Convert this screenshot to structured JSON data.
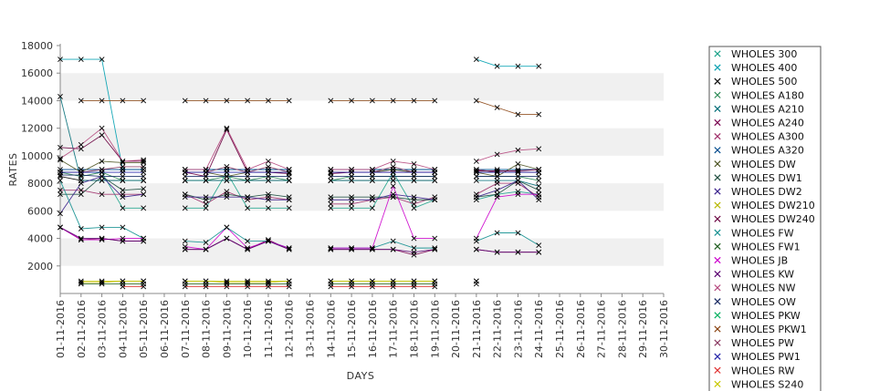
{
  "chart_data": {
    "type": "line",
    "title": "",
    "xlabel": "DAYS",
    "ylabel": "RATES",
    "ylim": [
      0,
      18000
    ],
    "yticks": [
      2000,
      4000,
      6000,
      8000,
      10000,
      12000,
      14000,
      16000,
      18000
    ],
    "x": [
      "01-11-2016",
      "02-11-2016",
      "03-11-2016",
      "04-11-2016",
      "05-11-2016",
      "06-11-2016",
      "07-11-2016",
      "08-11-2016",
      "09-11-2016",
      "10-11-2016",
      "11-11-2016",
      "12-11-2016",
      "13-11-2016",
      "14-11-2016",
      "15-11-2016",
      "16-11-2016",
      "17-11-2016",
      "18-11-2016",
      "19-11-2016",
      "20-11-2016",
      "21-11-2016",
      "22-11-2016",
      "23-11-2016",
      "24-11-2016",
      "25-11-2016",
      "26-11-2016",
      "27-11-2016",
      "28-11-2016",
      "29-11-2016",
      "30-11-2016"
    ],
    "grid": "alternating horizontal bands",
    "legend_position": "right",
    "series": [
      {
        "name": "WHOLES 300",
        "color": "#1aa38a",
        "values": [
          8800,
          8800,
          8800,
          6200,
          6200,
          null,
          6200,
          6200,
          8800,
          6200,
          6200,
          6200,
          null,
          6200,
          6200,
          6200,
          8800,
          6200,
          6800,
          null,
          6800,
          7200,
          7400,
          7200,
          null,
          null,
          null,
          null,
          null,
          null
        ]
      },
      {
        "name": "WHOLES 400",
        "color": "#00a0b0",
        "values": [
          17000,
          17000,
          17000,
          9000,
          9000,
          null,
          9000,
          9000,
          9000,
          9000,
          9000,
          9000,
          null,
          9000,
          9000,
          9000,
          9000,
          9000,
          9000,
          null,
          17000,
          16500,
          16500,
          16500,
          null,
          null,
          null,
          null,
          null,
          null
        ]
      },
      {
        "name": "WHOLES 500",
        "color": "#000000",
        "values": [
          8500,
          8200,
          8200,
          8200,
          8200,
          null,
          8200,
          8200,
          8200,
          8200,
          8200,
          8200,
          null,
          8200,
          8200,
          8200,
          8200,
          8200,
          8200,
          null,
          8800,
          8800,
          8800,
          8800,
          null,
          null,
          null,
          null,
          null,
          null
        ]
      },
      {
        "name": "WHOLES A180",
        "color": "#2e8b57",
        "values": [
          8800,
          8500,
          8800,
          8200,
          8200,
          null,
          8200,
          8200,
          8500,
          8200,
          8500,
          8200,
          null,
          8200,
          8500,
          8500,
          8500,
          8500,
          8500,
          null,
          8500,
          8500,
          8500,
          8200,
          null,
          null,
          null,
          null,
          null,
          null
        ]
      },
      {
        "name": "WHOLES A210",
        "color": "#006d77",
        "values": [
          14300,
          8200,
          8200,
          8200,
          8200,
          null,
          8200,
          8200,
          8200,
          8200,
          8200,
          8200,
          null,
          8200,
          8200,
          8200,
          8200,
          8200,
          8200,
          null,
          8200,
          8200,
          8200,
          7800,
          null,
          null,
          null,
          null,
          null,
          null
        ]
      },
      {
        "name": "WHOLES A240",
        "color": "#7a0050",
        "values": [
          4800,
          3900,
          4000,
          3800,
          3800,
          null,
          3200,
          3200,
          4000,
          3200,
          3900,
          3200,
          null,
          3200,
          3200,
          3200,
          3200,
          2800,
          3200,
          null,
          3200,
          3000,
          3000,
          3000,
          null,
          null,
          null,
          null,
          null,
          null
        ]
      },
      {
        "name": "WHOLES A300",
        "color": "#a0306a",
        "values": [
          7500,
          7500,
          7200,
          7200,
          7200,
          null,
          7200,
          6500,
          7400,
          6800,
          7000,
          6800,
          null,
          6500,
          6500,
          6800,
          7000,
          6500,
          7000,
          null,
          7200,
          8000,
          8000,
          7000,
          null,
          null,
          null,
          null,
          null,
          null
        ]
      },
      {
        "name": "WHOLES A320",
        "color": "#004b8d",
        "values": [
          9000,
          9000,
          9000,
          9000,
          9000,
          null,
          9000,
          9000,
          9000,
          9000,
          9000,
          9000,
          null,
          9000,
          9000,
          9000,
          9000,
          9000,
          9000,
          null,
          9000,
          9000,
          9000,
          9000,
          null,
          null,
          null,
          null,
          null,
          null
        ]
      },
      {
        "name": "WHOLES DW",
        "color": "#4b5320",
        "values": [
          9700,
          8800,
          9600,
          9500,
          9500,
          null,
          8800,
          8800,
          8500,
          8800,
          8800,
          8800,
          null,
          8800,
          8800,
          8800,
          9000,
          8800,
          8800,
          null,
          8800,
          8500,
          9400,
          9000,
          null,
          null,
          null,
          null,
          null,
          null
        ]
      },
      {
        "name": "WHOLES DW1",
        "color": "#1b4d3e",
        "values": [
          7200,
          7200,
          8500,
          7500,
          7600,
          null,
          7200,
          6800,
          7200,
          7000,
          7200,
          7000,
          null,
          7000,
          7000,
          7000,
          7000,
          6800,
          6800,
          null,
          7000,
          7200,
          8200,
          7500,
          null,
          null,
          null,
          null,
          null,
          null
        ]
      },
      {
        "name": "WHOLES DW2",
        "color": "#3a1f8c",
        "values": [
          5800,
          8000,
          8500,
          7000,
          7200,
          null,
          7000,
          7000,
          7000,
          7000,
          6800,
          6800,
          null,
          6800,
          6800,
          6800,
          7200,
          7000,
          6800,
          null,
          7000,
          7500,
          8200,
          6800,
          null,
          null,
          null,
          null,
          null,
          null
        ]
      },
      {
        "name": "WHOLES DW210",
        "color": "#b8b800",
        "values": [
          null,
          800,
          800,
          900,
          900,
          null,
          900,
          900,
          800,
          800,
          800,
          900,
          null,
          900,
          900,
          900,
          900,
          900,
          900,
          null,
          900,
          null,
          null,
          null,
          null,
          null,
          null,
          null,
          null,
          null
        ]
      },
      {
        "name": "WHOLES DW240",
        "color": "#6a0040",
        "values": [
          10600,
          10500,
          11500,
          9600,
          9600,
          null,
          8800,
          8500,
          11900,
          8800,
          8800,
          8700,
          null,
          8700,
          8800,
          8800,
          8800,
          8800,
          8800,
          null,
          8900,
          8900,
          8900,
          9000,
          null,
          null,
          null,
          null,
          null,
          null
        ]
      },
      {
        "name": "WHOLES FW",
        "color": "#0f8f8f",
        "values": [
          8200,
          4700,
          4800,
          4800,
          4000,
          null,
          3800,
          3700,
          4800,
          3800,
          3800,
          3300,
          null,
          3300,
          3300,
          3300,
          3800,
          3300,
          3300,
          null,
          3800,
          4400,
          4400,
          3500,
          null,
          null,
          null,
          null,
          null,
          null
        ]
      },
      {
        "name": "WHOLES FW1",
        "color": "#1e5e1e",
        "values": [
          null,
          700,
          700,
          700,
          700,
          null,
          700,
          700,
          700,
          700,
          700,
          700,
          null,
          700,
          700,
          700,
          700,
          700,
          700,
          null,
          700,
          null,
          null,
          null,
          null,
          null,
          null,
          null,
          null,
          null
        ]
      },
      {
        "name": "WHOLES JB",
        "color": "#cc00cc",
        "values": [
          4800,
          3900,
          3900,
          4000,
          4000,
          null,
          3400,
          3200,
          4800,
          3300,
          3800,
          3300,
          null,
          3300,
          3300,
          3300,
          7800,
          4000,
          4000,
          null,
          4000,
          7000,
          7200,
          7200,
          null,
          null,
          null,
          null,
          null,
          null
        ]
      },
      {
        "name": "WHOLES KW",
        "color": "#5a0070",
        "values": [
          4800,
          4000,
          4000,
          3800,
          3800,
          null,
          3200,
          3200,
          4000,
          3200,
          3800,
          3200,
          null,
          3200,
          3200,
          3200,
          3200,
          3000,
          3200,
          null,
          3200,
          3000,
          3000,
          3000,
          null,
          null,
          null,
          null,
          null,
          null
        ]
      },
      {
        "name": "WHOLES NW",
        "color": "#b5477d",
        "values": [
          9800,
          10800,
          12000,
          9600,
          9700,
          null,
          9000,
          9000,
          12000,
          9000,
          9600,
          9000,
          null,
          9000,
          9000,
          9000,
          9600,
          9400,
          9000,
          null,
          9600,
          10100,
          10400,
          10500,
          null,
          null,
          null,
          null,
          null,
          null
        ]
      },
      {
        "name": "WHOLES OW",
        "color": "#0b1f5c",
        "values": [
          8600,
          8600,
          8500,
          8500,
          8500,
          null,
          8500,
          8500,
          8500,
          8500,
          8500,
          8500,
          null,
          8500,
          8500,
          8500,
          8500,
          8500,
          8500,
          null,
          8500,
          8500,
          8500,
          8500,
          null,
          null,
          null,
          null,
          null,
          null
        ]
      },
      {
        "name": "WHOLES PKW",
        "color": "#00b060",
        "values": [
          null,
          9000,
          null,
          null,
          null,
          null,
          null,
          null,
          null,
          null,
          null,
          null,
          null,
          null,
          null,
          null,
          null,
          null,
          null,
          null,
          null,
          null,
          null,
          null,
          null,
          null,
          null,
          null,
          null,
          null
        ]
      },
      {
        "name": "WHOLES PKW1",
        "color": "#8b4513",
        "values": [
          null,
          14000,
          14000,
          14000,
          14000,
          null,
          14000,
          14000,
          14000,
          14000,
          14000,
          14000,
          null,
          14000,
          14000,
          14000,
          14000,
          14000,
          14000,
          null,
          14000,
          13500,
          13000,
          13000,
          null,
          null,
          null,
          null,
          null,
          null
        ]
      },
      {
        "name": "WHOLES PW",
        "color": "#8b3a62",
        "values": [
          8800,
          8800,
          9000,
          9200,
          9200,
          null,
          8800,
          8800,
          9200,
          8800,
          9200,
          8800,
          null,
          8800,
          8800,
          8800,
          9200,
          8800,
          8800,
          null,
          9000,
          8800,
          8800,
          8800,
          null,
          null,
          null,
          null,
          null,
          null
        ]
      },
      {
        "name": "WHOLES PW1",
        "color": "#1a1aa6",
        "values": [
          8800,
          8800,
          8800,
          8800,
          8800,
          null,
          8800,
          8800,
          8800,
          8800,
          8800,
          8800,
          null,
          8800,
          8800,
          8800,
          8800,
          8800,
          8800,
          null,
          8800,
          8800,
          8800,
          8800,
          null,
          null,
          null,
          null,
          null,
          null
        ]
      },
      {
        "name": "WHOLES RW",
        "color": "#e03030",
        "values": [
          null,
          null,
          null,
          500,
          500,
          null,
          500,
          500,
          500,
          500,
          500,
          500,
          null,
          500,
          500,
          500,
          500,
          500,
          500,
          null,
          null,
          null,
          null,
          null,
          null,
          null,
          null,
          null,
          null,
          null
        ]
      },
      {
        "name": "WHOLES S240",
        "color": "#c8c800",
        "values": [
          null,
          900,
          900,
          900,
          900,
          null,
          900,
          900,
          900,
          900,
          900,
          900,
          null,
          900,
          900,
          900,
          900,
          900,
          900,
          null,
          900,
          null,
          null,
          null,
          null,
          null,
          null,
          null,
          null,
          null
        ]
      }
    ]
  }
}
